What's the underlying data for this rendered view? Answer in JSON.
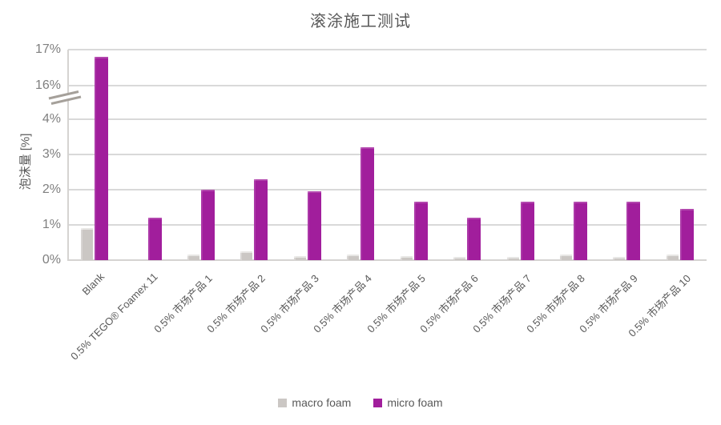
{
  "chart_data": {
    "type": "bar",
    "title": "滚涂施工测试",
    "ylabel": "泡沫量 [%]",
    "categories": [
      "Blank",
      "0.5% TEGO® Foamex 11",
      "0.5% 市场产品 1",
      "0.5% 市场产品 2",
      "0.5% 市场产品 3",
      "0.5% 市场产品 4",
      "0.5% 市场产品 5",
      "0.5% 市场产品 6",
      "0.5% 市场产品 7",
      "0.5% 市场产品 8",
      "0.5% 市场产品 9",
      "0.5% 市场产品 10"
    ],
    "series": [
      {
        "name": "macro foam",
        "color": "#CBC7C4",
        "values": [
          0.9,
          0,
          0.15,
          0.25,
          0.12,
          0.15,
          0.12,
          0.08,
          0.08,
          0.15,
          0.08,
          0.15
        ]
      },
      {
        "name": "micro foam",
        "color": "#A11E9C",
        "values": [
          16.8,
          1.2,
          2.0,
          2.3,
          1.95,
          3.2,
          1.65,
          1.2,
          1.65,
          1.65,
          1.65,
          1.45
        ]
      }
    ],
    "axis": {
      "broken": true,
      "lower_ticks": [
        0,
        1,
        2,
        3,
        4
      ],
      "upper_ticks": [
        16,
        17
      ],
      "tick_suffix": "%",
      "lower_range": [
        0,
        4
      ],
      "upper_range": [
        16,
        17
      ]
    },
    "grid": true,
    "legend_position": "bottom",
    "legend": [
      "macro foam",
      "micro foam"
    ]
  },
  "colors": {
    "gridline": "#D9D9D9",
    "tick_text": "#7F7F7F",
    "label_text": "#595959",
    "macro_foam": "#CBC7C4",
    "micro_foam": "#A11E9C",
    "break_line": "#A5A09A"
  }
}
